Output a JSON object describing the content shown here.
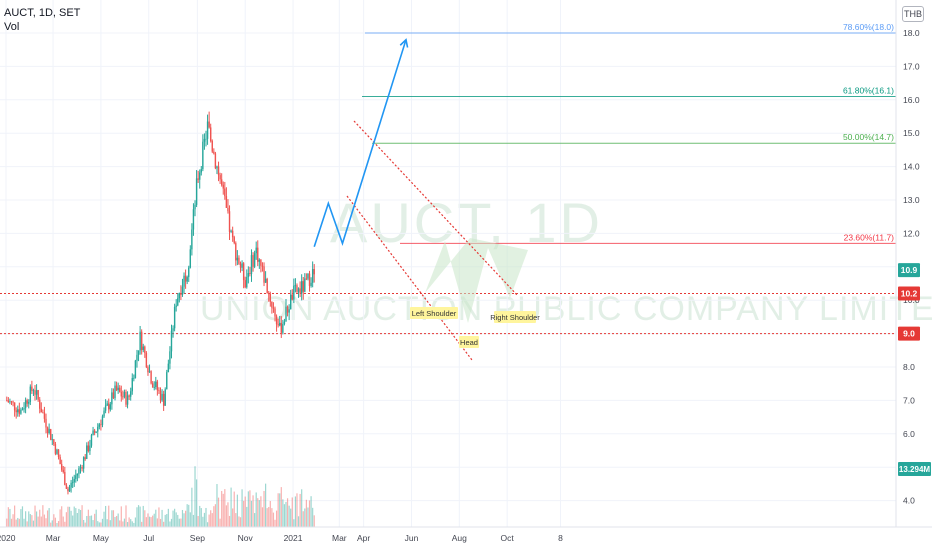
{
  "header": {
    "symbol_line": "AUCT, 1D, SET",
    "indicator": "Vol",
    "currency": "THB"
  },
  "watermark": {
    "symbol": "AUCT, 1D",
    "company": "UNION AUCTION PUBLIC COMPANY LIMITED"
  },
  "chart_data": {
    "type": "candlestick",
    "x_ticks": [
      "2020",
      "Mar",
      "May",
      "Jul",
      "Sep",
      "Nov",
      "2021",
      "Mar",
      "Apr",
      "Jun",
      "Aug",
      "Oct",
      "8"
    ],
    "y_ticks": [
      "4.0",
      "5.0",
      "6.0",
      "7.0",
      "8.0",
      "9.0",
      "10.0",
      "11.0",
      "12.0",
      "13.0",
      "14.0",
      "15.0",
      "16.0",
      "17.0",
      "18.0"
    ],
    "ylim": [
      3.3,
      18.7
    ],
    "price_series": [
      {
        "date": "2020-01-02",
        "close": 7.0
      },
      {
        "date": "2020-01-20",
        "close": 6.7
      },
      {
        "date": "2020-02-05",
        "close": 7.4
      },
      {
        "date": "2020-02-20",
        "close": 6.4
      },
      {
        "date": "2020-03-05",
        "close": 5.5
      },
      {
        "date": "2020-03-20",
        "close": 4.3
      },
      {
        "date": "2020-04-05",
        "close": 5.0
      },
      {
        "date": "2020-04-20",
        "close": 5.9
      },
      {
        "date": "2020-05-05",
        "close": 6.6
      },
      {
        "date": "2020-05-20",
        "close": 7.3
      },
      {
        "date": "2020-06-05",
        "close": 7.0
      },
      {
        "date": "2020-06-20",
        "close": 8.9
      },
      {
        "date": "2020-07-05",
        "close": 7.6
      },
      {
        "date": "2020-07-20",
        "close": 7.0
      },
      {
        "date": "2020-08-05",
        "close": 10.0
      },
      {
        "date": "2020-08-20",
        "close": 11.0
      },
      {
        "date": "2020-09-01",
        "close": 13.6
      },
      {
        "date": "2020-09-14",
        "close": 15.2
      },
      {
        "date": "2020-10-01",
        "close": 13.5
      },
      {
        "date": "2020-10-15",
        "close": 11.8
      },
      {
        "date": "2020-11-01",
        "close": 10.6
      },
      {
        "date": "2020-11-15",
        "close": 11.5
      },
      {
        "date": "2020-12-01",
        "close": 10.2
      },
      {
        "date": "2020-12-15",
        "close": 9.1
      },
      {
        "date": "2021-01-01",
        "close": 10.2
      },
      {
        "date": "2021-01-15",
        "close": 10.4
      },
      {
        "date": "2021-01-28",
        "close": 10.9
      }
    ],
    "horizontal_levels": [
      {
        "label": "78.60%(18.0)",
        "value": 18.0,
        "color": "#5b9cf6"
      },
      {
        "label": "61.80%(16.1)",
        "value": 16.1,
        "color": "#089981"
      },
      {
        "label": "50.00%(14.7)",
        "value": 14.7,
        "color": "#4caf50"
      },
      {
        "label": "23.60%(11.7)",
        "value": 11.7,
        "color": "#f23645"
      }
    ],
    "price_labels": [
      {
        "text": "10.9",
        "value": 10.9,
        "color": "#26a69a"
      },
      {
        "text": "10.2",
        "value": 10.2,
        "color": "#e53935"
      },
      {
        "text": "9.0",
        "value": 9.0,
        "color": "#e53935"
      }
    ],
    "volume_label": "13.294M",
    "annotations": [
      "Left Shoulder",
      "Head",
      "Right Shoulder"
    ],
    "projection_path": [
      {
        "date": "2021-01-28",
        "value": 11.6
      },
      {
        "date": "2021-02-15",
        "value": 12.9
      },
      {
        "date": "2021-03-05",
        "value": 11.7
      },
      {
        "date": "2021-05-25",
        "value": 17.8
      }
    ],
    "colors": {
      "up": "#26a69a",
      "down": "#ef5350",
      "projection": "#2196f3"
    }
  }
}
